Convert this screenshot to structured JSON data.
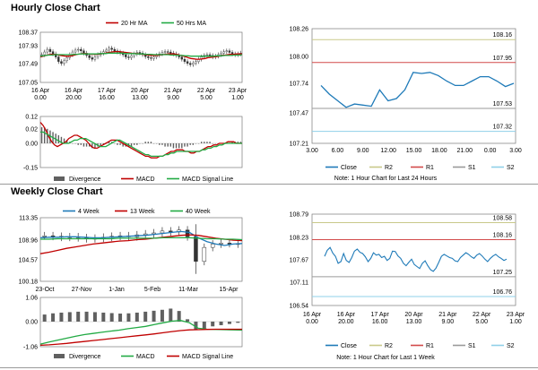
{
  "sections": {
    "hourly_title": "Hourly Close Chart",
    "weekly_title": "Weekly Close Chart"
  },
  "colors": {
    "ma20": "#c00000",
    "ma50": "#22aa44",
    "candle": "#333333",
    "macd": "#c00000",
    "signal": "#22aa44",
    "close": "#1e7ab8",
    "r2": "#c9c98a",
    "r1": "#d24a4a",
    "s1": "#9a9a9a",
    "s2": "#8fd0e8",
    "divergence": "#606060"
  },
  "chart_data": [
    {
      "id": "hourly_price",
      "type": "candlestick",
      "title": "Hourly Close Chart",
      "legend": [
        "20 Hr MA",
        "50 Hrs MA"
      ],
      "yticks": [
        "108.37",
        "107.93",
        "107.49",
        "107.05"
      ],
      "ylim": [
        107.05,
        108.37
      ],
      "xticks": [
        [
          "16 Apr",
          "0.00"
        ],
        [
          "16 Apr",
          "20.00"
        ],
        [
          "17 Apr",
          "16.00"
        ],
        [
          "20 Apr",
          "13.00"
        ],
        [
          "21 Apr",
          "9.00"
        ],
        [
          "22 Apr",
          "5.00"
        ],
        [
          "23 Apr",
          "1.00"
        ]
      ],
      "close": [
        107.78,
        107.85,
        107.92,
        107.86,
        107.8,
        107.72,
        107.6,
        107.55,
        107.62,
        107.7,
        107.78,
        107.85,
        107.9,
        107.92,
        107.88,
        107.82,
        107.76,
        107.7,
        107.66,
        107.72,
        107.78,
        107.82,
        107.86,
        107.9,
        107.95,
        107.92,
        107.88,
        107.85,
        107.82,
        107.78,
        107.72,
        107.7,
        107.75,
        107.8,
        107.84,
        107.82,
        107.78,
        107.73,
        107.7,
        107.68,
        107.72,
        107.76,
        107.8,
        107.84,
        107.86,
        107.85,
        107.82,
        107.8,
        107.76,
        107.72,
        107.66,
        107.6,
        107.55,
        107.52,
        107.56,
        107.6,
        107.66,
        107.72,
        107.76,
        107.78,
        107.76,
        107.72,
        107.74,
        107.78,
        107.82,
        107.86,
        107.88,
        107.84,
        107.8,
        107.78,
        107.8,
        107.82
      ],
      "ma20": [
        107.72,
        107.74,
        107.76,
        107.78,
        107.79,
        107.79,
        107.78,
        107.76,
        107.75,
        107.74,
        107.74,
        107.75,
        107.77,
        107.79,
        107.8,
        107.81,
        107.81,
        107.8,
        107.79,
        107.79,
        107.79,
        107.8,
        107.81,
        107.82,
        107.84,
        107.85,
        107.86,
        107.86,
        107.86,
        107.85,
        107.84,
        107.83,
        107.82,
        107.81,
        107.81,
        107.8,
        107.79,
        107.78,
        107.77,
        107.76,
        107.76,
        107.76,
        107.77,
        107.78,
        107.79,
        107.8,
        107.8,
        107.8,
        107.79,
        107.77,
        107.75,
        107.73,
        107.7,
        107.68,
        107.67,
        107.66,
        107.66,
        107.67,
        107.68,
        107.7,
        107.71,
        107.72,
        107.73,
        107.74,
        107.76,
        107.77,
        107.78,
        107.79,
        107.79,
        107.8,
        107.8,
        107.8
      ],
      "ma50": [
        107.74,
        107.75,
        107.76,
        107.77,
        107.77,
        107.78,
        107.78,
        107.78,
        107.78,
        107.78,
        107.78,
        107.78,
        107.79,
        107.79,
        107.8,
        107.8,
        107.8,
        107.8,
        107.8,
        107.8,
        107.8,
        107.81,
        107.81,
        107.81,
        107.82,
        107.82,
        107.82,
        107.82,
        107.82,
        107.82,
        107.81,
        107.81,
        107.81,
        107.81,
        107.8,
        107.8,
        107.8,
        107.79,
        107.79,
        107.79,
        107.78,
        107.78,
        107.78,
        107.78,
        107.78,
        107.78,
        107.77,
        107.77,
        107.77,
        107.76,
        107.76,
        107.75,
        107.75,
        107.74,
        107.74,
        107.74,
        107.74,
        107.74,
        107.74,
        107.74,
        107.74,
        107.74,
        107.75,
        107.75,
        107.75,
        107.76,
        107.76,
        107.76,
        107.77,
        107.77,
        107.77,
        107.78
      ]
    },
    {
      "id": "hourly_macd",
      "type": "bar+line",
      "legend": [
        "Divergence",
        "MACD",
        "MACD Signal Line"
      ],
      "yticks": [
        "0.12",
        "0.02",
        "0.00",
        "-0.15"
      ],
      "divergence": [
        0.1,
        0.1,
        0.09,
        0.08,
        0.07,
        0.06,
        0.05,
        0.04,
        0.03,
        0.02,
        0.01,
        0.0,
        0.0,
        -0.01,
        -0.01,
        -0.02,
        -0.02,
        -0.02,
        -0.03,
        -0.03,
        -0.02,
        -0.02,
        -0.01,
        0.0,
        0.01,
        0.01,
        0.0,
        -0.01,
        -0.01,
        -0.02,
        -0.02,
        -0.02,
        -0.02,
        -0.01,
        -0.01,
        0.0,
        0.0,
        0.01,
        0.01,
        0.01,
        0.0,
        0.0,
        -0.01,
        -0.01,
        -0.02,
        -0.02,
        -0.02,
        -0.03,
        -0.03,
        -0.03,
        -0.03,
        -0.02,
        -0.02,
        -0.01,
        -0.01,
        0.0,
        0.0,
        0.01,
        0.01,
        0.01,
        0.01,
        0.0,
        0.0,
        0.0,
        0.0,
        0.0,
        0.0,
        0.0,
        0.01,
        0.01,
        0.01,
        0.01
      ],
      "macd": [
        0.13,
        0.11,
        0.08,
        0.04,
        0.01,
        -0.01,
        -0.02,
        -0.01,
        0.0,
        0.01,
        0.03,
        0.04,
        0.05,
        0.05,
        0.04,
        0.03,
        0.02,
        0.0,
        -0.02,
        -0.03,
        -0.03,
        -0.02,
        -0.01,
        0.0,
        0.01,
        0.02,
        0.02,
        0.02,
        0.01,
        0.0,
        -0.01,
        -0.02,
        -0.03,
        -0.04,
        -0.05,
        -0.06,
        -0.07,
        -0.08,
        -0.08,
        -0.09,
        -0.09,
        -0.09,
        -0.08,
        -0.08,
        -0.07,
        -0.06,
        -0.05,
        -0.05,
        -0.04,
        -0.04,
        -0.04,
        -0.05,
        -0.05,
        -0.06,
        -0.06,
        -0.05,
        -0.05,
        -0.04,
        -0.03,
        -0.02,
        -0.02,
        -0.01,
        -0.01,
        0.0,
        0.0,
        0.0,
        0.01,
        0.01,
        0.01,
        0.0,
        0.0,
        0.0
      ],
      "signal": [
        0.07,
        0.07,
        0.06,
        0.05,
        0.04,
        0.03,
        0.02,
        0.01,
        0.0,
        0.0,
        0.0,
        0.01,
        0.02,
        0.02,
        0.03,
        0.03,
        0.03,
        0.02,
        0.01,
        0.0,
        -0.01,
        -0.02,
        -0.02,
        -0.02,
        -0.01,
        0.0,
        0.01,
        0.02,
        0.02,
        0.01,
        0.0,
        -0.01,
        -0.02,
        -0.03,
        -0.04,
        -0.05,
        -0.06,
        -0.07,
        -0.07,
        -0.08,
        -0.08,
        -0.08,
        -0.08,
        -0.08,
        -0.07,
        -0.07,
        -0.06,
        -0.06,
        -0.05,
        -0.05,
        -0.05,
        -0.05,
        -0.05,
        -0.05,
        -0.05,
        -0.05,
        -0.05,
        -0.04,
        -0.04,
        -0.03,
        -0.03,
        -0.02,
        -0.02,
        -0.01,
        -0.01,
        0.0,
        0.0,
        0.0,
        0.0,
        0.0,
        0.0,
        0.0
      ]
    },
    {
      "id": "hourly_close",
      "type": "line",
      "note": "Note: 1 Hour Chart for Last 24 Hours",
      "legend": [
        "Close",
        "R2",
        "R1",
        "S1",
        "S2"
      ],
      "yticks": [
        "108.26",
        "108.00",
        "107.74",
        "107.47",
        "107.21"
      ],
      "ylim": [
        107.21,
        108.26
      ],
      "xticks": [
        "3.00",
        "6.00",
        "9.00",
        "12.00",
        "15.00",
        "18.00",
        "21.00",
        "0.00",
        "3.00"
      ],
      "levels": {
        "R2": 108.16,
        "R1": 107.95,
        "S1": 107.53,
        "S2": 107.32
      },
      "level_labels": [
        "108.16",
        "107.95",
        "107.53",
        "107.32"
      ],
      "close": [
        107.74,
        107.66,
        107.6,
        107.54,
        107.57,
        107.56,
        107.55,
        107.7,
        107.6,
        107.62,
        107.7,
        107.86,
        107.85,
        107.86,
        107.83,
        107.78,
        107.74,
        107.74,
        107.78,
        107.82,
        107.82,
        107.78,
        107.73,
        107.76
      ]
    },
    {
      "id": "weekly_price",
      "type": "candlestick",
      "title": "Weekly Close Chart",
      "legend": [
        "4 Week",
        "13 Week",
        "40 Week"
      ],
      "yticks": [
        "113.35",
        "108.96",
        "104.57",
        "100.18"
      ],
      "ylim": [
        100.18,
        113.35
      ],
      "xticks": [
        "23-Oct",
        "27-Nov",
        "1-Jan",
        "5-Feb",
        "11-Mar",
        "15-Apr"
      ],
      "close": [
        109.6,
        109.5,
        109.3,
        109.4,
        109.2,
        109.0,
        109.1,
        109.3,
        109.5,
        109.6,
        109.4,
        109.8,
        110.0,
        110.2,
        110.6,
        110.4,
        110.8,
        109.4,
        104.3,
        107.2,
        107.9,
        108.1,
        108.0,
        107.9
      ],
      "ma4": [
        109.2,
        109.3,
        109.3,
        109.4,
        109.4,
        109.3,
        109.2,
        109.2,
        109.3,
        109.4,
        109.5,
        109.6,
        109.7,
        109.9,
        110.1,
        110.3,
        110.5,
        110.3,
        109.2,
        108.4,
        107.9,
        107.6,
        107.9,
        108.0
      ],
      "ma13": [
        105.9,
        106.2,
        106.6,
        107.0,
        107.3,
        107.6,
        107.9,
        108.1,
        108.3,
        108.5,
        108.6,
        108.8,
        108.9,
        109.1,
        109.3,
        109.5,
        109.7,
        109.8,
        109.7,
        109.4,
        109.1,
        108.9,
        108.7,
        108.6
      ],
      "ma40": [
        108.9,
        108.9,
        109.0,
        109.0,
        109.0,
        109.0,
        109.0,
        109.0,
        109.0,
        109.1,
        109.1,
        109.1,
        109.1,
        109.1,
        109.2,
        109.2,
        109.2,
        109.2,
        109.1,
        109.0,
        109.0,
        108.9,
        108.9,
        108.8
      ]
    },
    {
      "id": "weekly_macd",
      "type": "bar+line",
      "legend": [
        "Divergence",
        "MACD",
        "MACD Signal Line"
      ],
      "yticks": [
        "1.06",
        "0.00",
        "-1.06"
      ],
      "divergence": [
        0.3,
        0.35,
        0.38,
        0.4,
        0.42,
        0.42,
        0.4,
        0.38,
        0.36,
        0.34,
        0.35,
        0.38,
        0.42,
        0.46,
        0.5,
        0.55,
        0.45,
        0.1,
        -0.35,
        -0.3,
        -0.2,
        -0.15,
        -0.1,
        -0.05
      ],
      "macd": [
        -0.95,
        -0.86,
        -0.78,
        -0.7,
        -0.62,
        -0.55,
        -0.5,
        -0.45,
        -0.4,
        -0.36,
        -0.3,
        -0.25,
        -0.2,
        -0.12,
        -0.05,
        0.02,
        0.05,
        -0.05,
        -0.28,
        -0.32,
        -0.33,
        -0.34,
        -0.35,
        -0.36
      ],
      "signal": [
        -1.0,
        -0.98,
        -0.95,
        -0.92,
        -0.88,
        -0.84,
        -0.8,
        -0.76,
        -0.72,
        -0.68,
        -0.64,
        -0.6,
        -0.56,
        -0.52,
        -0.47,
        -0.42,
        -0.38,
        -0.35,
        -0.34,
        -0.33,
        -0.32,
        -0.32,
        -0.32,
        -0.32
      ]
    },
    {
      "id": "weekly_close",
      "type": "line",
      "note": "Note: 1 Hour Chart for Last 1 Week",
      "legend": [
        "Close",
        "R2",
        "R1",
        "S1",
        "S2"
      ],
      "yticks": [
        "108.79",
        "108.23",
        "107.67",
        "107.11",
        "106.54"
      ],
      "ylim": [
        106.54,
        108.79
      ],
      "xticks": [
        [
          "16 Apr",
          "0.00"
        ],
        [
          "16 Apr",
          "20.00"
        ],
        [
          "17 Apr",
          "16.00"
        ],
        [
          "20 Apr",
          "13.00"
        ],
        [
          "21 Apr",
          "9.00"
        ],
        [
          "22 Apr",
          "5.00"
        ],
        [
          "23 Apr",
          "1.00"
        ]
      ],
      "levels": {
        "R2": 108.58,
        "R1": 108.16,
        "S1": 107.25,
        "S2": 106.76
      },
      "level_labels": [
        "108.58",
        "108.16",
        "107.25",
        "106.76"
      ],
      "close": [
        107.75,
        107.9,
        107.97,
        107.83,
        107.75,
        107.58,
        107.62,
        107.82,
        107.65,
        107.6,
        107.72,
        107.88,
        107.93,
        107.85,
        107.82,
        107.74,
        107.62,
        107.7,
        107.84,
        107.78,
        107.8,
        107.72,
        107.75,
        107.65,
        107.7,
        107.88,
        107.87,
        107.76,
        107.7,
        107.58,
        107.52,
        107.6,
        107.68,
        107.55,
        107.5,
        107.45,
        107.58,
        107.64,
        107.52,
        107.42,
        107.38,
        107.46,
        107.6,
        107.75,
        107.8,
        107.76,
        107.72,
        107.7,
        107.64,
        107.62,
        107.72,
        107.78,
        107.84,
        107.8,
        107.74,
        107.7,
        107.78,
        107.82,
        107.76,
        107.68,
        107.62,
        107.7,
        107.76,
        107.8,
        107.74,
        107.7,
        107.65,
        107.68
      ]
    }
  ]
}
